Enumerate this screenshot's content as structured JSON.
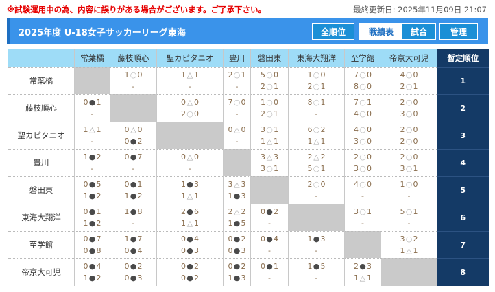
{
  "notice": "※試験運用中の為、内容に誤りがある場合がございます。ご了承下さい。",
  "updated": "最終更新日: 2025年11月09日 21:07",
  "title": "2025年度 U-18女子サッカーリーグ東海",
  "nav": [
    {
      "label": "全順位",
      "active": false
    },
    {
      "label": "戦績表",
      "active": true
    },
    {
      "label": "試合",
      "active": false
    },
    {
      "label": "管理",
      "active": false
    }
  ],
  "colors": {
    "accent": "#3a93ea",
    "header": "#9edcf7",
    "rank": "#143a66",
    "notice": "#e60000"
  },
  "table": {
    "teams": [
      "常葉橘",
      "藤枝順心",
      "聖カピタニオ",
      "豊川",
      "磐田東",
      "東海大翔洋",
      "至学館",
      "帝京大可児"
    ],
    "rank_header": "暫定順位",
    "rows": [
      {
        "team": "常葉橘",
        "rank": "1",
        "cells": [
          null,
          [
            "1○0",
            "-"
          ],
          [
            "1△1",
            "-"
          ],
          [
            "2○1",
            "-"
          ],
          [
            "5○0",
            "2○1"
          ],
          [
            "1○0",
            "2○1"
          ],
          [
            "7○0",
            "8○0"
          ],
          [
            "4○0",
            "2○1"
          ]
        ]
      },
      {
        "team": "藤枝順心",
        "rank": "2",
        "cells": [
          [
            "0●1",
            "-"
          ],
          null,
          [
            "0△0",
            "2○0"
          ],
          [
            "7○0",
            "-"
          ],
          [
            "1○0",
            "2○1"
          ],
          [
            "8○1",
            "-"
          ],
          [
            "7○1",
            "4○0"
          ],
          [
            "2○0",
            "3○0"
          ]
        ]
      },
      {
        "team": "聖カピタニオ",
        "rank": "3",
        "cells": [
          [
            "1△1",
            "-"
          ],
          [
            "0△0",
            "0●2"
          ],
          null,
          [
            "0△0",
            "-"
          ],
          [
            "3○1",
            "1△1"
          ],
          [
            "6○2",
            "1△1"
          ],
          [
            "4○0",
            "3○0"
          ],
          [
            "2○0",
            "2○0"
          ]
        ]
      },
      {
        "team": "豊川",
        "rank": "4",
        "cells": [
          [
            "1●2",
            "-"
          ],
          [
            "0●7",
            "-"
          ],
          [
            "0△0",
            "-"
          ],
          null,
          [
            "3△3",
            "3○1"
          ],
          [
            "2△2",
            "5○1"
          ],
          [
            "2○0",
            "3○0"
          ],
          [
            "2○0",
            "3○1"
          ]
        ]
      },
      {
        "team": "磐田東",
        "rank": "5",
        "cells": [
          [
            "0●5",
            "1●2"
          ],
          [
            "0●1",
            "1●2"
          ],
          [
            "1●3",
            "1△1"
          ],
          [
            "3△3",
            "1●3"
          ],
          null,
          [
            "2○0",
            "-"
          ],
          [
            "4○0",
            "-"
          ],
          [
            "1○0",
            "-"
          ]
        ]
      },
      {
        "team": "東海大翔洋",
        "rank": "6",
        "cells": [
          [
            "0●1",
            "1●2"
          ],
          [
            "1●8",
            "-"
          ],
          [
            "2●6",
            "1△1"
          ],
          [
            "2△2",
            "1●5"
          ],
          [
            "0●2",
            "-"
          ],
          null,
          [
            "3○1",
            "-"
          ],
          [
            "5○1",
            "-"
          ]
        ]
      },
      {
        "team": "至学館",
        "rank": "7",
        "cells": [
          [
            "0●7",
            "0●8"
          ],
          [
            "1●7",
            "0●4"
          ],
          [
            "0●4",
            "0●3"
          ],
          [
            "0●2",
            "0●3"
          ],
          [
            "0●4",
            "-"
          ],
          [
            "1●3",
            "-"
          ],
          null,
          [
            "3○2",
            "1△1"
          ]
        ]
      },
      {
        "team": "帝京大可児",
        "rank": "8",
        "cells": [
          [
            "0●4",
            "1●2"
          ],
          [
            "0●2",
            "0●3"
          ],
          [
            "0●2",
            "0●2"
          ],
          [
            "0●2",
            "1●3"
          ],
          [
            "0●1",
            "-"
          ],
          [
            "1●5",
            "-"
          ],
          [
            "2●3",
            "1△1"
          ],
          null
        ]
      }
    ]
  }
}
